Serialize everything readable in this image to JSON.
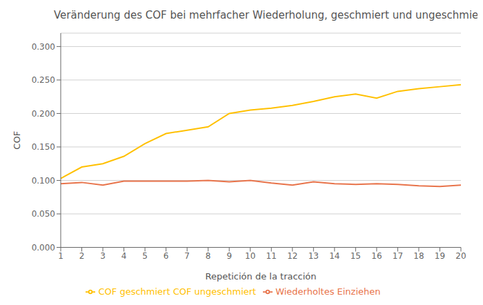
{
  "chart_data": {
    "type": "line",
    "title": "Veränderung des COF bei mehrfacher Wiederholung, geschmiert und ungeschmiert",
    "x_label": "Repetición de la tracción",
    "y_label": "COF",
    "x": [
      1,
      2,
      3,
      4,
      5,
      6,
      7,
      8,
      9,
      10,
      11,
      12,
      13,
      14,
      15,
      16,
      17,
      18,
      19,
      20
    ],
    "series": [
      {
        "name": "Wiederholtes Einziehen",
        "color": "#E8734A",
        "values": [
          0.095,
          0.097,
          0.093,
          0.099,
          0.099,
          0.099,
          0.099,
          0.1,
          0.098,
          0.1,
          0.096,
          0.093,
          0.098,
          0.095,
          0.094,
          0.095,
          0.094,
          0.092,
          0.091,
          0.093
        ]
      },
      {
        "name": "COF geschmiert COF ungeschmiert",
        "color": "#FFC000",
        "values": [
          0.103,
          0.12,
          0.125,
          0.136,
          0.155,
          0.17,
          0.175,
          0.18,
          0.2,
          0.205,
          0.208,
          0.212,
          0.218,
          0.225,
          0.229,
          0.223,
          0.233,
          0.237,
          0.24,
          0.243
        ]
      }
    ],
    "xlim": [
      1,
      20
    ],
    "xticks": [
      1,
      2,
      3,
      4,
      5,
      6,
      7,
      8,
      9,
      10,
      11,
      12,
      13,
      14,
      15,
      16,
      17,
      18,
      19,
      20
    ],
    "ylim": [
      0.0,
      0.32
    ],
    "yticks": [
      {
        "value": 0.0,
        "label": "0.000"
      },
      {
        "value": 0.05,
        "label": "0.050"
      },
      {
        "value": 0.1,
        "label": "0.100"
      },
      {
        "value": 0.15,
        "label": "0.150"
      },
      {
        "value": 0.2,
        "label": "0.200"
      },
      {
        "value": 0.25,
        "label": "0.250"
      },
      {
        "value": 0.3,
        "label": "0.300"
      }
    ],
    "grid": true,
    "legend": "bottom"
  }
}
